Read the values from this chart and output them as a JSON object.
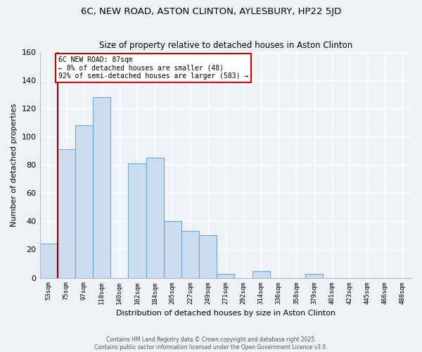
{
  "title": "6C, NEW ROAD, ASTON CLINTON, AYLESBURY, HP22 5JD",
  "subtitle": "Size of property relative to detached houses in Aston Clinton",
  "xlabel": "Distribution of detached houses by size in Aston Clinton",
  "ylabel": "Number of detached properties",
  "bar_color": "#ccddf0",
  "bar_edge_color": "#6aaad4",
  "categories": [
    "53sqm",
    "75sqm",
    "97sqm",
    "118sqm",
    "140sqm",
    "162sqm",
    "184sqm",
    "205sqm",
    "227sqm",
    "249sqm",
    "271sqm",
    "292sqm",
    "314sqm",
    "336sqm",
    "358sqm",
    "379sqm",
    "401sqm",
    "423sqm",
    "445sqm",
    "466sqm",
    "488sqm"
  ],
  "values": [
    24,
    91,
    108,
    128,
    0,
    81,
    85,
    40,
    33,
    30,
    3,
    0,
    5,
    0,
    0,
    3,
    0,
    0,
    0,
    0,
    0
  ],
  "ylim": [
    0,
    160
  ],
  "yticks": [
    0,
    20,
    40,
    60,
    80,
    100,
    120,
    140,
    160
  ],
  "vline_x": 1.0,
  "vline_color": "#8b0000",
  "annotation_title": "6C NEW ROAD: 87sqm",
  "annotation_line1": "← 8% of detached houses are smaller (48)",
  "annotation_line2": "92% of semi-detached houses are larger (583) →",
  "annotation_box_color": "#ffffff",
  "annotation_box_edge": "#cc0000",
  "footer1": "Contains HM Land Registry data © Crown copyright and database right 2025.",
  "footer2": "Contains public sector information licensed under the Open Government Licence v3.0.",
  "bg_color": "#eef2f7",
  "grid_color": "#ffffff",
  "spine_color": "#bbbbbb"
}
